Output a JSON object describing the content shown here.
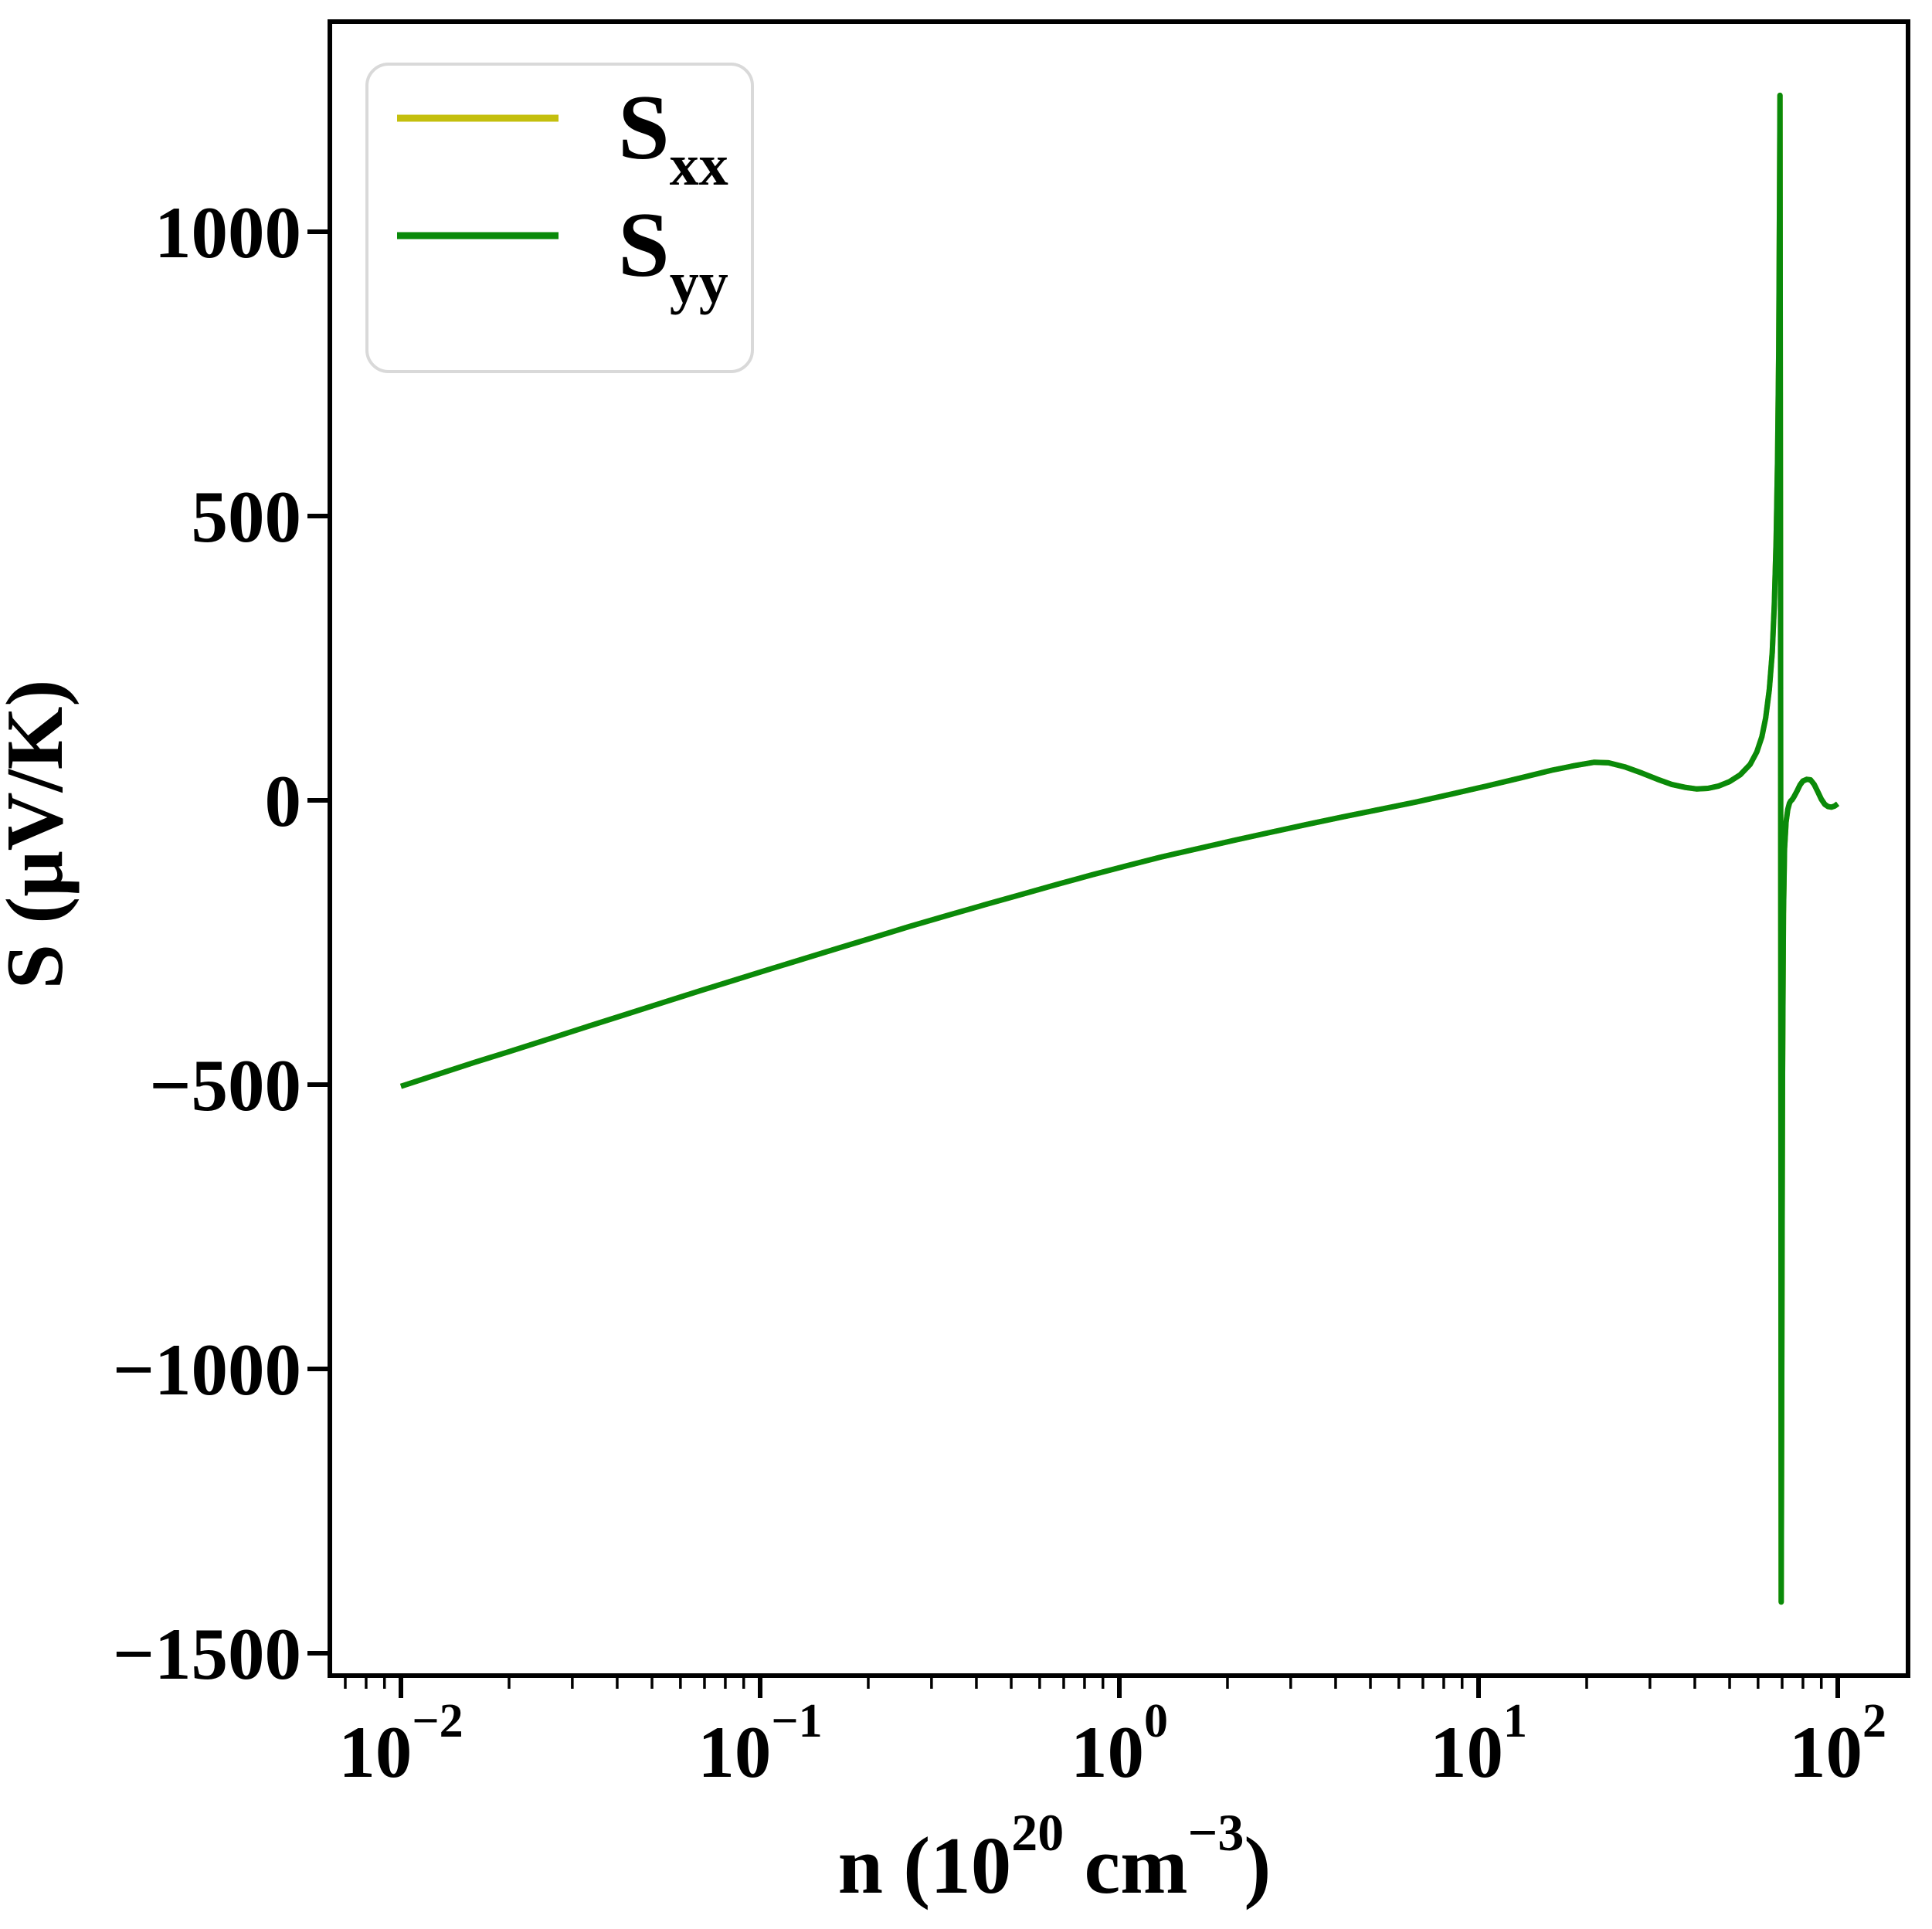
{
  "legend": {
    "items": [
      {
        "label_main": "S",
        "label_sub": "xx",
        "color": "#c4bf0e"
      },
      {
        "label_main": "S",
        "label_sub": "yy",
        "color": "#0a8a0a"
      }
    ]
  },
  "axes": {
    "x": {
      "label_parts": [
        "n (10",
        "20",
        " cm",
        "−3",
        ")"
      ],
      "scale": "log",
      "ticks": [
        {
          "base": "10",
          "exp": "−2",
          "value": 0.01
        },
        {
          "base": "10",
          "exp": "−1",
          "value": 0.1
        },
        {
          "base": "10",
          "exp": "0",
          "value": 1
        },
        {
          "base": "10",
          "exp": "1",
          "value": 10
        },
        {
          "base": "10",
          "exp": "2",
          "value": 100
        }
      ]
    },
    "y": {
      "label": "S (μV/K)",
      "ticks": [
        {
          "label": "1000",
          "value": 1000
        },
        {
          "label": "500",
          "value": 500
        },
        {
          "label": "0",
          "value": 0
        },
        {
          "label": "−500",
          "value": -500
        },
        {
          "label": "−1000",
          "value": -1000
        },
        {
          "label": "−1500",
          "value": -1500
        }
      ]
    }
  },
  "chart_data": {
    "type": "line",
    "title": "",
    "xlabel": "n (10^20 cm^-3)",
    "ylabel": "S (μV/K)",
    "x_scale": "log",
    "xlim": [
      0.0063,
      157
    ],
    "ylim": [
      -1540,
      1370
    ],
    "grid": false,
    "legend_position": "upper left",
    "note": "S_xx and S_yy coincide; S_yy (green) is drawn over S_xx (yellow) so only green is visible on the curve.",
    "series": [
      {
        "name": "S_xx",
        "color": "#c4bf0e"
      },
      {
        "name": "S_yy",
        "color": "#0a8a0a"
      }
    ],
    "shared_points": [
      [
        0.01,
        -503
      ],
      [
        0.0125,
        -483
      ],
      [
        0.016,
        -461
      ],
      [
        0.02,
        -442
      ],
      [
        0.026,
        -419
      ],
      [
        0.033,
        -398
      ],
      [
        0.042,
        -377
      ],
      [
        0.054,
        -355
      ],
      [
        0.068,
        -335
      ],
      [
        0.085,
        -316
      ],
      [
        0.105,
        -298
      ],
      [
        0.13,
        -280
      ],
      [
        0.165,
        -260
      ],
      [
        0.21,
        -240
      ],
      [
        0.26,
        -222
      ],
      [
        0.33,
        -203
      ],
      [
        0.42,
        -184
      ],
      [
        0.53,
        -166
      ],
      [
        0.67,
        -148
      ],
      [
        0.84,
        -131
      ],
      [
        1.05,
        -115
      ],
      [
        1.3,
        -100
      ],
      [
        1.65,
        -85
      ],
      [
        2.1,
        -70
      ],
      [
        2.6,
        -57
      ],
      [
        3.3,
        -43
      ],
      [
        4.2,
        -29
      ],
      [
        5.3,
        -16
      ],
      [
        6.7,
        -3
      ],
      [
        8.4,
        11
      ],
      [
        10.5,
        25
      ],
      [
        13,
        39
      ],
      [
        16,
        53
      ],
      [
        18.5,
        61
      ],
      [
        21,
        67
      ],
      [
        23,
        66
      ],
      [
        25.5,
        59
      ],
      [
        28.5,
        48
      ],
      [
        31.5,
        37
      ],
      [
        34.5,
        28
      ],
      [
        37.5,
        23
      ],
      [
        40.5,
        20
      ],
      [
        43.5,
        21
      ],
      [
        46.5,
        25
      ],
      [
        50,
        33
      ],
      [
        53.5,
        45
      ],
      [
        57,
        63
      ],
      [
        59.5,
        85
      ],
      [
        61.5,
        112
      ],
      [
        63,
        145
      ],
      [
        64.5,
        195
      ],
      [
        65.7,
        260
      ],
      [
        66.6,
        345
      ],
      [
        67.4,
        460
      ],
      [
        68,
        600
      ],
      [
        68.5,
        790
      ],
      [
        68.85,
        1050
      ],
      [
        69.05,
        1240
      ],
      [
        69.3,
        400
      ],
      [
        69.45,
        -500
      ],
      [
        69.6,
        -1410
      ],
      [
        69.9,
        -900
      ],
      [
        70.2,
        -480
      ],
      [
        70.6,
        -200
      ],
      [
        71.1,
        -85
      ],
      [
        71.8,
        -38
      ],
      [
        72.6,
        -16
      ],
      [
        73.4,
        -5
      ],
      [
        74,
        -1
      ],
      [
        74.6,
        1
      ],
      [
        75.5,
        6
      ],
      [
        77,
        16
      ],
      [
        78.5,
        27
      ],
      [
        80,
        34
      ],
      [
        82,
        37
      ],
      [
        84,
        36
      ],
      [
        86,
        28
      ],
      [
        88,
        15
      ],
      [
        90,
        2
      ],
      [
        92,
        -7
      ],
      [
        94,
        -11
      ],
      [
        96,
        -12
      ],
      [
        98,
        -10
      ],
      [
        100,
        -6
      ]
    ]
  }
}
